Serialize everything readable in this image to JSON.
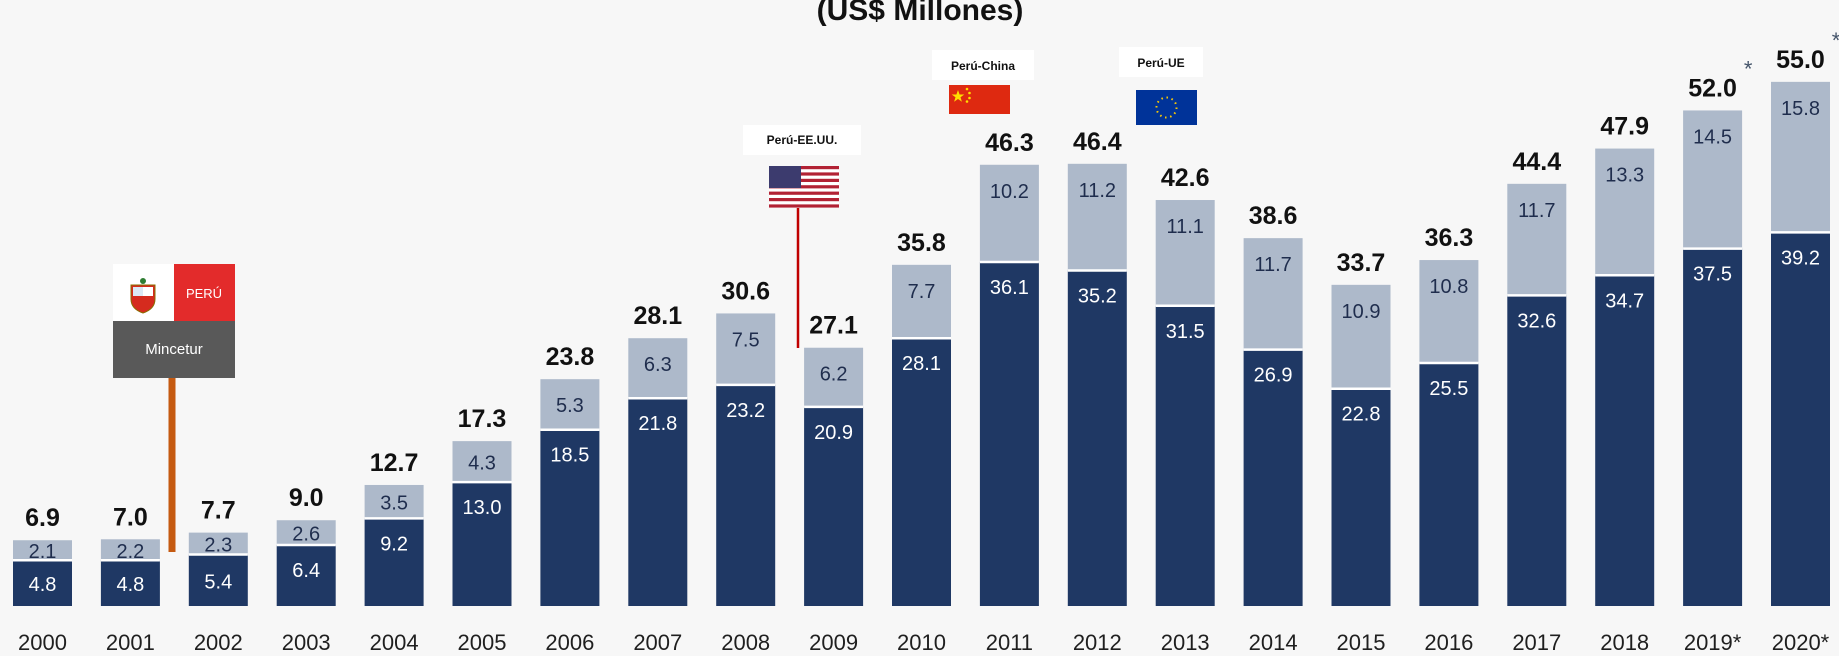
{
  "chart_data": {
    "type": "bar",
    "stacked": true,
    "title": "(US$ Millones)",
    "categories": [
      "2000",
      "2001",
      "2002",
      "2003",
      "2004",
      "2005",
      "2006",
      "2007",
      "2008",
      "2009",
      "2010",
      "2011",
      "2012",
      "2013",
      "2014",
      "2015",
      "2016",
      "2017",
      "2018",
      "2019*",
      "2020*"
    ],
    "series": [
      {
        "values": [
          4.8,
          4.8,
          5.4,
          6.4,
          9.2,
          13.0,
          18.5,
          21.8,
          23.2,
          20.9,
          28.1,
          36.1,
          35.2,
          31.5,
          26.9,
          22.8,
          25.5,
          32.6,
          34.7,
          37.5,
          39.2
        ],
        "color": "#1f3864"
      },
      {
        "values": [
          2.1,
          2.2,
          2.3,
          2.6,
          3.5,
          4.3,
          5.3,
          6.3,
          7.5,
          6.2,
          7.7,
          10.2,
          11.2,
          11.1,
          11.7,
          10.9,
          10.8,
          11.7,
          13.3,
          14.5,
          15.8
        ],
        "color": "#adb9ca"
      }
    ],
    "totals": [
      "6.9",
      "7.0",
      "7.7",
      "9.0",
      "12.7",
      "17.3",
      "23.8",
      "28.1",
      "30.6",
      "27.1",
      "35.8",
      "46.3",
      "46.4",
      "42.6",
      "38.6",
      "33.7",
      "36.3",
      "44.4",
      "47.9",
      "52.0",
      "55.0"
    ],
    "total_colors": {
      "default": "#111111",
      "highlight_index": 18,
      "highlight_color": "#c00000",
      "projected_color": "#333f50"
    },
    "projection_marker": "*",
    "annotations": [
      {
        "id": "mincetur",
        "text": "Mincetur",
        "flag_text": "PERÚ",
        "category": "2001"
      },
      {
        "id": "peru-eeuu",
        "text": "Perú-EE.UU.",
        "category": "2009"
      },
      {
        "id": "peru-china",
        "text": "Perú-China",
        "category": "2011"
      },
      {
        "id": "peru-ue",
        "text": "Perú-UE",
        "category": "2013"
      }
    ]
  }
}
